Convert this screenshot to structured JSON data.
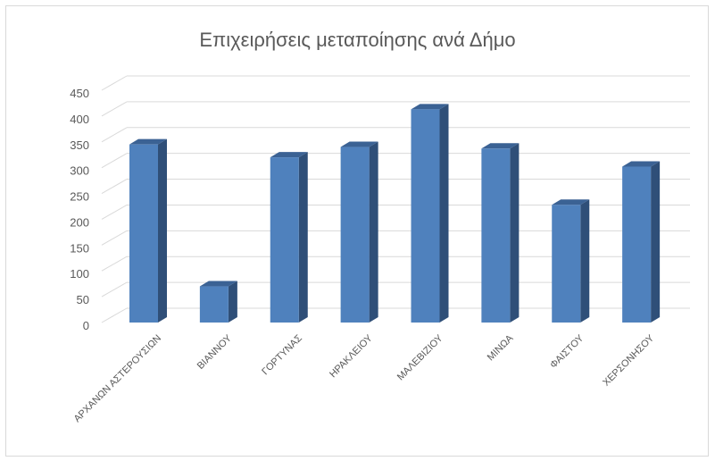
{
  "chart_data": {
    "type": "bar",
    "title": "Επιχειρήσεις μεταποίησης ανά Δήμο",
    "categories": [
      "ΑΡΧΑΝΩΝ ΑΣΤΕΡΟΥΣΙΩΝ",
      "ΒΙΑΝΝΟΥ",
      "ΓΟΡΤΥΝΑΣ",
      "ΗΡΑΚΛΕΙΟΥ",
      "ΜΑΛΕΒΙΖΙΟΥ",
      "ΜΙΝΩΑ",
      "ΦΑΙΣΤΟΥ",
      "ΧΕΡΣΟΝΗΣΟΥ"
    ],
    "values": [
      345,
      70,
      320,
      340,
      413,
      337,
      228,
      302
    ],
    "ylim": [
      0,
      450
    ],
    "yticks": [
      "0",
      "50",
      "100",
      "150",
      "200",
      "250",
      "300",
      "350",
      "400",
      "450"
    ],
    "grid": true,
    "style": "3d-column",
    "colors": {
      "bar_front": "#4f81bd",
      "bar_side": "#2f4f78",
      "bar_top": "#3b6294",
      "grid": "#d9d9d9",
      "text": "#595959"
    }
  }
}
